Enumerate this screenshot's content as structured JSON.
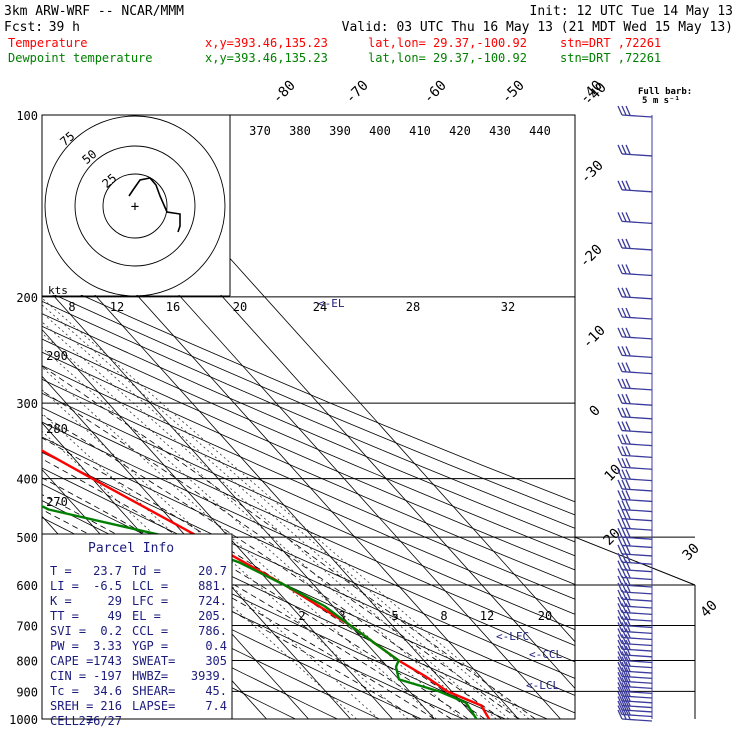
{
  "header": {
    "model": "3km ARW-WRF -- NCAR/MMM",
    "init": "Init: 12 UTC Tue 14 May 13",
    "fcst_label": "Fcst:",
    "fcst_value": "39 h",
    "valid": "Valid: 03 UTC Thu 16 May 13 (21 MDT Wed 15 May 13)",
    "temp_line": {
      "label": "Temperature",
      "xy": "x,y=393.46,135.23",
      "latlon": "lat,lon= 29.37,-100.92",
      "stn": "stn=DRT ,72261"
    },
    "dew_line": {
      "label": "Dewpoint temperature",
      "xy": "x,y=393.46,135.23",
      "latlon": "lat,lon= 29.37,-100.92",
      "stn": "stn=DRT ,72261"
    },
    "barb_note_1": "Full barb:",
    "barb_note_2": "5 m s⁻¹"
  },
  "colors": {
    "temperature": "#ff0000",
    "dewpoint": "#008000",
    "barb": "#3c3c9c",
    "axis": "#000000",
    "navy": "#1c1c7c"
  },
  "parcel_info": {
    "title": "Parcel Info",
    "rows": [
      [
        "T  =",
        "23.7",
        "Td =",
        "20.7"
      ],
      [
        "LI =",
        "-6.5",
        "LCL =",
        "881."
      ],
      [
        "K  =",
        "29",
        "LFC =",
        "724."
      ],
      [
        "TT =",
        "49",
        "EL =",
        "205."
      ],
      [
        "SVI =",
        "0.2",
        "CCL =",
        "786."
      ],
      [
        "PW =",
        "3.33",
        "YGP =",
        "0.4"
      ],
      [
        "CAPE =",
        "1743",
        "SWEAT=",
        "305"
      ],
      [
        "CIN =",
        "-197",
        "HWBZ=",
        "3939."
      ],
      [
        "Tc =",
        "34.6",
        "SHEAR=",
        "45."
      ],
      [
        "SREH =",
        "216",
        "LAPSE=",
        "7.4"
      ],
      [
        "CELL =",
        "276/27",
        "",
        ""
      ]
    ]
  },
  "hodograph": {
    "units": "kts",
    "ring_labels": [
      "75",
      "50",
      "25"
    ]
  },
  "level_markers": {
    "lfc": "<-LFC",
    "ccl": "<-CCL",
    "lcl": "<-LCL",
    "el": "<-EL"
  },
  "chart_data": {
    "type": "line",
    "title": "",
    "ylabel": "",
    "pressure_levels": [
      100,
      200,
      300,
      400,
      500,
      600,
      700,
      800,
      900,
      1000
    ],
    "temp_ticks": [
      -40,
      -30,
      -20,
      -10,
      0,
      10,
      20,
      30,
      40
    ],
    "isotherm_top_labels": [
      "-80",
      "-70",
      "-60",
      "-50",
      "-40"
    ],
    "theta_labels": [
      "370",
      "380",
      "390",
      "400",
      "410",
      "420",
      "430",
      "440"
    ],
    "theta_lower_labels": [
      "290",
      "280",
      "270"
    ],
    "mixing_ratio_labels_upper": [
      "8",
      "12",
      "16",
      "20",
      "24",
      "28",
      "32"
    ],
    "mixing_ratio_labels_lower": [
      "2",
      "3",
      "5",
      "8",
      "12",
      "20"
    ],
    "series": [
      {
        "name": "Temperature",
        "points": [
          [
            100,
            -72
          ],
          [
            150,
            -63
          ],
          [
            200,
            -53
          ],
          [
            300,
            -36
          ],
          [
            400,
            -20
          ],
          [
            500,
            -7
          ],
          [
            600,
            3
          ],
          [
            700,
            10
          ],
          [
            800,
            14
          ],
          [
            850,
            17
          ],
          [
            900,
            19
          ],
          [
            950,
            24
          ],
          [
            1000,
            23
          ]
        ]
      },
      {
        "name": "Dewpoint temperature",
        "points": [
          [
            100,
            -88
          ],
          [
            130,
            -87
          ],
          [
            160,
            -84
          ],
          [
            200,
            -77
          ],
          [
            250,
            -69
          ],
          [
            300,
            -63
          ],
          [
            350,
            -50
          ],
          [
            380,
            -43
          ],
          [
            400,
            -45
          ],
          [
            450,
            -37
          ],
          [
            500,
            -14
          ],
          [
            550,
            -3
          ],
          [
            600,
            3
          ],
          [
            650,
            8
          ],
          [
            700,
            10
          ],
          [
            750,
            12
          ],
          [
            800,
            14
          ],
          [
            820,
            12
          ],
          [
            860,
            10
          ],
          [
            900,
            17
          ],
          [
            940,
            21
          ],
          [
            1000,
            20
          ]
        ]
      }
    ],
    "wind_barbs": [
      100,
      116,
      133,
      150,
      166,
      183,
      200,
      216,
      233,
      250,
      266,
      283,
      300,
      316,
      333,
      350,
      366,
      383,
      400,
      416,
      433,
      450,
      466,
      483,
      500,
      516,
      533,
      550,
      566,
      583,
      600,
      616,
      633,
      650,
      666,
      683,
      700,
      716,
      733,
      750,
      766,
      783,
      800,
      816,
      833,
      850,
      866,
      883,
      900,
      916,
      933,
      950,
      966,
      983,
      1000
    ]
  }
}
